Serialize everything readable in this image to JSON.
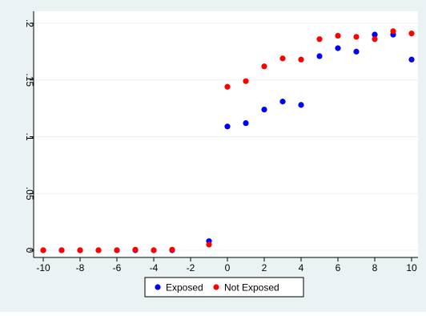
{
  "chart_data": {
    "type": "scatter",
    "title": "",
    "xlabel": "",
    "ylabel": "",
    "xlim": [
      -10,
      10
    ],
    "ylim": [
      0,
      0.2
    ],
    "x_ticks": [
      {
        "value": -10,
        "label": "-10"
      },
      {
        "value": -8,
        "label": "-8"
      },
      {
        "value": -6,
        "label": "-6"
      },
      {
        "value": -4,
        "label": "-4"
      },
      {
        "value": -2,
        "label": "-2"
      },
      {
        "value": 0,
        "label": "0"
      },
      {
        "value": 2,
        "label": "2"
      },
      {
        "value": 4,
        "label": "4"
      },
      {
        "value": 6,
        "label": "6"
      },
      {
        "value": 8,
        "label": "8"
      },
      {
        "value": 10,
        "label": "10"
      }
    ],
    "y_ticks": [
      {
        "value": 0,
        "label": "0"
      },
      {
        "value": 0.05,
        "label": ".05"
      },
      {
        "value": 0.1,
        "label": ".1"
      },
      {
        "value": 0.15,
        "label": ".15"
      },
      {
        "value": 0.2,
        "label": ".2"
      }
    ],
    "grid": true,
    "legend_position": "bottom",
    "colors": {
      "outer_background": "#eaf2f3",
      "plot_background": "#ffffff",
      "grid": "#eaf2f3"
    },
    "series": [
      {
        "name": "Exposed",
        "color": "#0000ff",
        "x": [
          -10,
          -9,
          -8,
          -7,
          -6,
          -5,
          -4,
          -3,
          -1,
          0,
          1,
          2,
          3,
          4,
          5,
          6,
          7,
          8,
          9,
          10
        ],
        "y": [
          0,
          0,
          0,
          0,
          0,
          0,
          0,
          0,
          0.008,
          0.109,
          0.112,
          0.124,
          0.131,
          0.128,
          0.171,
          0.178,
          0.175,
          0.19,
          0.19,
          0.168
        ]
      },
      {
        "name": "Not Exposed",
        "color": "#ff0000",
        "x": [
          -10,
          -9,
          -8,
          -7,
          -6,
          -5,
          -4,
          -3,
          -1,
          0,
          1,
          2,
          3,
          4,
          5,
          6,
          7,
          8,
          9,
          10
        ],
        "y": [
          0,
          0,
          0,
          0,
          0,
          0.0005,
          0,
          0.0005,
          0.005,
          0.144,
          0.149,
          0.162,
          0.169,
          0.168,
          0.186,
          0.189,
          0.188,
          0.186,
          0.193,
          0.191
        ]
      }
    ]
  }
}
